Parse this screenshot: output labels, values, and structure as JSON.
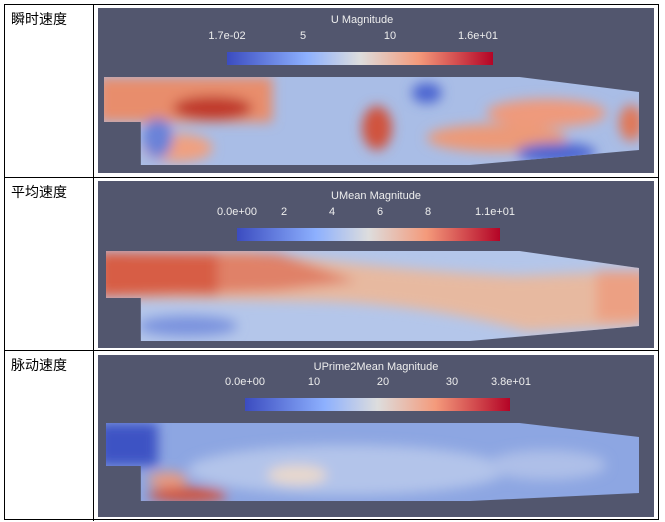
{
  "rows": [
    {
      "label": "瞬时速度",
      "colorbar": {
        "title": "U Magnitude",
        "ticks": [
          "1.7e-02",
          "5",
          "10",
          "1.6e+01"
        ]
      }
    },
    {
      "label": "平均速度",
      "colorbar": {
        "title": "UMean Magnitude",
        "ticks": [
          "0.0e+00",
          "2",
          "4",
          "6",
          "8",
          "1.1e+01"
        ]
      }
    },
    {
      "label": "脉动速度",
      "colorbar": {
        "title": "UPrime2Mean Magnitude",
        "ticks": [
          "0.0e+00",
          "10",
          "20",
          "30",
          "3.8e+01"
        ]
      }
    }
  ],
  "colors": {
    "background": "#52566e",
    "low": "#3b4cc0",
    "mid": "#dddddd",
    "high": "#b40426"
  }
}
